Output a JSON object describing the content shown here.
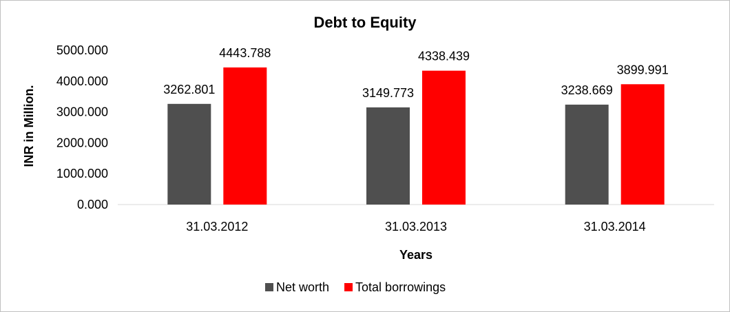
{
  "chart_data": {
    "type": "bar",
    "title": "Debt to Equity",
    "xlabel": "Years",
    "ylabel": "INR in Million.",
    "categories": [
      "31.03.2012",
      "31.03.2013",
      "31.03.2014"
    ],
    "series": [
      {
        "name": "Net worth",
        "color": "#4f4f4f",
        "values": [
          3262.801,
          3149.773,
          3238.669
        ]
      },
      {
        "name": "Total borrowings",
        "color": "#ff0000",
        "values": [
          4443.788,
          4338.439,
          3899.991
        ]
      }
    ],
    "ylim": [
      0,
      5000
    ],
    "yticks": [
      "0.000",
      "1000.000",
      "2000.000",
      "3000.000",
      "4000.000",
      "5000.000"
    ],
    "data_labels": [
      [
        "3262.801",
        "3149.773",
        "3238.669"
      ],
      [
        "4443.788",
        "4338.439",
        "3899.991"
      ]
    ],
    "legend_position": "bottom",
    "grid": false
  }
}
